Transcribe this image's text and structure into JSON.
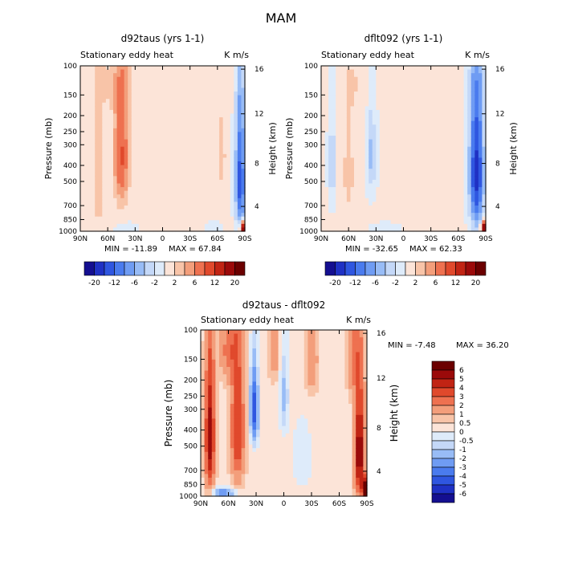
{
  "figure_title": "MAM",
  "chart_data": [
    {
      "id": "top-left",
      "type": "heatmap",
      "title": "d92taus (yrs 1-1)",
      "subtitle_left": "Stationary eddy heat",
      "subtitle_right": "K m/s",
      "xlabel": "",
      "ylabel": "Pressure (mb)",
      "y2label": "Height (km)",
      "x_ticks": [
        "90N",
        "60N",
        "30N",
        "0",
        "30S",
        "60S",
        "90S"
      ],
      "y_ticks": [
        "100",
        "150",
        "200",
        "250",
        "300",
        "400",
        "500",
        "700",
        "850",
        "1000"
      ],
      "y2_ticks": [
        "16",
        "12",
        "8",
        "4"
      ],
      "min_label": "MIN = -11.89",
      "max_label": "MAX = 67.84",
      "min": -11.89,
      "max": 67.84,
      "colorbar_labels": [
        "-20",
        "-12",
        "-6",
        "-2",
        "2",
        "6",
        "12",
        "20"
      ],
      "features": [
        {
          "lat": 70,
          "p": 500,
          "w": 6,
          "h": 380,
          "v": 4
        },
        {
          "lat": 45,
          "p": 350,
          "w": 8,
          "h": 300,
          "v": 9
        },
        {
          "lat": 50,
          "p": 130,
          "w": 14,
          "h": 60,
          "v": 1.5
        },
        {
          "lat": 65,
          "p": 130,
          "w": 10,
          "h": 50,
          "v": 1.2
        },
        {
          "lat": -65,
          "p": 350,
          "w": 4,
          "h": 200,
          "v": 3
        },
        {
          "lat": -85,
          "p": 500,
          "w": 5,
          "h": 400,
          "v": -14
        },
        {
          "lat": -88,
          "p": 950,
          "w": 3,
          "h": 80,
          "v": 20
        },
        {
          "lat": 40,
          "p": 950,
          "w": 10,
          "h": 60,
          "v": -2
        },
        {
          "lat": -55,
          "p": 950,
          "w": 8,
          "h": 60,
          "v": -2
        },
        {
          "lat": -10,
          "p": 400,
          "w": 8,
          "h": 250,
          "v": 0.8
        }
      ]
    },
    {
      "id": "top-right",
      "type": "heatmap",
      "title": "dflt092 (yrs 1-1)",
      "subtitle_left": "Stationary eddy heat",
      "subtitle_right": "K m/s",
      "xlabel": "",
      "ylabel": "Pressure (mb)",
      "y2label": "Height (km)",
      "x_ticks": [
        "90N",
        "60N",
        "30N",
        "0",
        "30S",
        "60S",
        "90S"
      ],
      "y_ticks": [
        "100",
        "150",
        "200",
        "250",
        "300",
        "400",
        "500",
        "700",
        "850",
        "1000"
      ],
      "y2_ticks": [
        "16",
        "12",
        "8",
        "4"
      ],
      "min_label": "MIN = -32.65",
      "max_label": "MAX = 62.33",
      "min": -32.65,
      "max": 62.33,
      "colorbar_labels": [
        "-20",
        "-12",
        "-6",
        "-2",
        "2",
        "6",
        "12",
        "20"
      ],
      "features": [
        {
          "lat": 60,
          "p": 450,
          "w": 7,
          "h": 350,
          "v": 2.5
        },
        {
          "lat": 78,
          "p": 400,
          "w": 4,
          "h": 250,
          "v": -4
        },
        {
          "lat": 35,
          "p": 350,
          "w": 5,
          "h": 200,
          "v": -5
        },
        {
          "lat": 50,
          "p": 130,
          "w": 14,
          "h": 60,
          "v": 1.5
        },
        {
          "lat": -80,
          "p": 450,
          "w": 7,
          "h": 400,
          "v": -18
        },
        {
          "lat": -88,
          "p": 950,
          "w": 3,
          "h": 80,
          "v": 20
        },
        {
          "lat": -20,
          "p": 600,
          "w": 10,
          "h": 250,
          "v": 0.8
        },
        {
          "lat": 20,
          "p": 950,
          "w": 15,
          "h": 60,
          "v": -1.5
        }
      ]
    },
    {
      "id": "bottom",
      "type": "heatmap",
      "title": "d92taus - dflt092",
      "subtitle_left": "Stationary eddy heat",
      "subtitle_right": "K m/s",
      "xlabel": "",
      "ylabel": "Pressure (mb)",
      "y2label": "Height (km)",
      "x_ticks": [
        "90N",
        "60N",
        "30N",
        "0",
        "30S",
        "60S",
        "90S"
      ],
      "y_ticks": [
        "100",
        "150",
        "200",
        "250",
        "300",
        "400",
        "500",
        "700",
        "850",
        "1000"
      ],
      "y2_ticks": [
        "16",
        "12",
        "8",
        "4"
      ],
      "min_label": "MIN =   -7.48",
      "max_label": "MAX =   36.20",
      "min": -7.48,
      "max": 36.2,
      "colorbar_labels": [
        "6",
        "5",
        "4",
        "3",
        "2",
        "1",
        "0.5",
        "0",
        "-0.5",
        "-1",
        "-2",
        "-3",
        "-4",
        "-5",
        "-6"
      ],
      "features": [
        {
          "lat": 80,
          "p": 450,
          "w": 5,
          "h": 380,
          "v": 5.5
        },
        {
          "lat": 50,
          "p": 400,
          "w": 7,
          "h": 350,
          "v": 4
        },
        {
          "lat": 32,
          "p": 300,
          "w": 4,
          "h": 150,
          "v": -5
        },
        {
          "lat": 60,
          "p": 130,
          "w": 10,
          "h": 60,
          "v": 2
        },
        {
          "lat": 10,
          "p": 130,
          "w": 6,
          "h": 60,
          "v": 1.5
        },
        {
          "lat": -30,
          "p": 150,
          "w": 7,
          "h": 80,
          "v": 1.5
        },
        {
          "lat": -75,
          "p": 150,
          "w": 6,
          "h": 80,
          "v": 2
        },
        {
          "lat": -82,
          "p": 550,
          "w": 5,
          "h": 400,
          "v": 6
        },
        {
          "lat": -88,
          "p": 900,
          "w": 3,
          "h": 120,
          "v": 8
        },
        {
          "lat": 65,
          "p": 950,
          "w": 12,
          "h": 60,
          "v": -3
        },
        {
          "lat": -20,
          "p": 600,
          "w": 12,
          "h": 300,
          "v": -0.7
        },
        {
          "lat": 0,
          "p": 250,
          "w": 5,
          "h": 150,
          "v": -1.5
        }
      ]
    }
  ]
}
